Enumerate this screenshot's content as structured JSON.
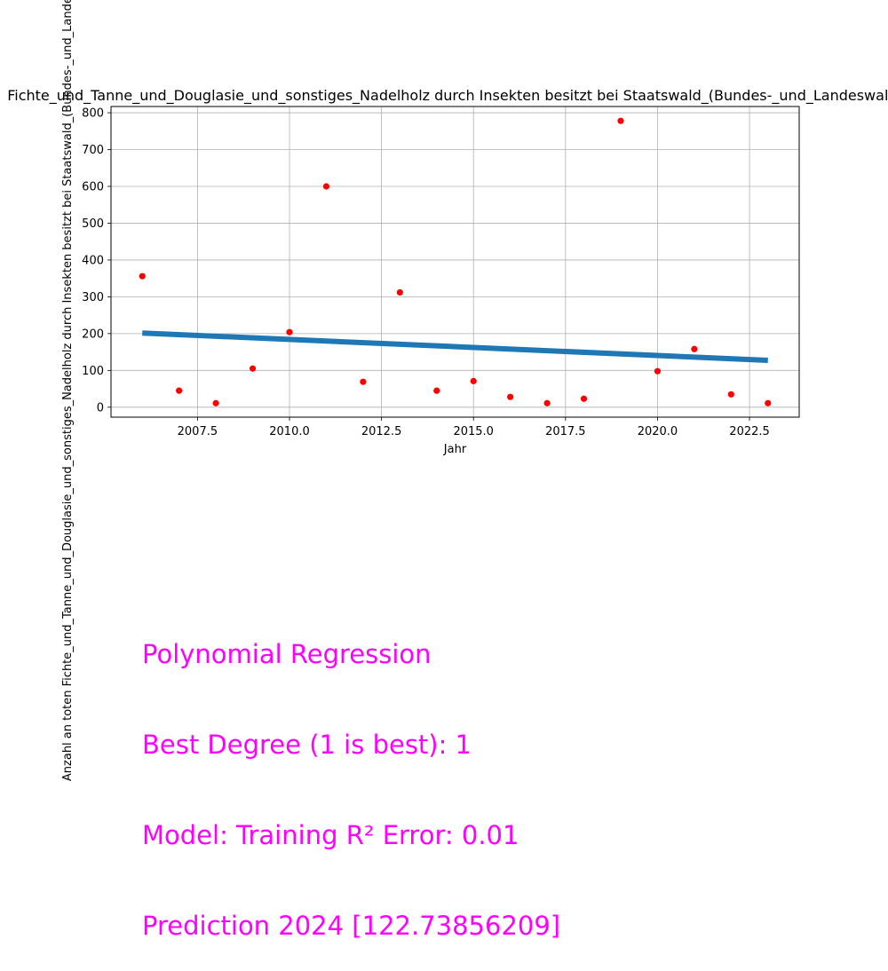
{
  "chart_data": {
    "type": "scatter",
    "title": "Fichte_und_Tanne_und_Douglasie_und_sonstiges_Nadelholz durch Insekten besitzt bei Staatswald_(Bundes-_und_Landeswald)",
    "xlabel": "Jahr",
    "ylabel": "Anzahl an toten Fichte_und_Tanne_und_Douglasie_und_sonstiges_Nadelholz durch Insekten besitzt bei Staatswald_(Bundes-_und_Landeswald)",
    "xlim": [
      2005.15,
      2023.85
    ],
    "ylim": [
      -27,
      817
    ],
    "grid": true,
    "x_ticks": [
      2007.5,
      2010.0,
      2012.5,
      2015.0,
      2017.5,
      2020.0,
      2022.5
    ],
    "x_tick_labels": [
      "2007.5",
      "2010.0",
      "2012.5",
      "2015.0",
      "2017.5",
      "2020.0",
      "2022.5"
    ],
    "y_ticks": [
      0,
      100,
      200,
      300,
      400,
      500,
      600,
      700,
      800
    ],
    "y_tick_labels": [
      "0",
      "100",
      "200",
      "300",
      "400",
      "500",
      "600",
      "700",
      "800"
    ],
    "series": [
      {
        "kind": "scatter",
        "color": "#ff0000",
        "x": [
          2006,
          2007,
          2008,
          2009,
          2010,
          2011,
          2012,
          2013,
          2014,
          2015,
          2016,
          2017,
          2018,
          2019,
          2020,
          2021,
          2022,
          2023
        ],
        "y": [
          356,
          45,
          11,
          105,
          204,
          600,
          69,
          312,
          45,
          71,
          28,
          11,
          23,
          778,
          98,
          158,
          35,
          11
        ]
      },
      {
        "kind": "line",
        "color": "#1f77b4",
        "x": [
          2006,
          2023
        ],
        "y": [
          201.6,
          127.4
        ]
      }
    ]
  },
  "annotation": {
    "color": "#ff00ff",
    "lines": [
      "Polynomial Regression",
      "Best Degree (1 is best): 1",
      "Model: Training R² Error: 0.01",
      "Prediction 2024 [122.73856209]"
    ]
  }
}
